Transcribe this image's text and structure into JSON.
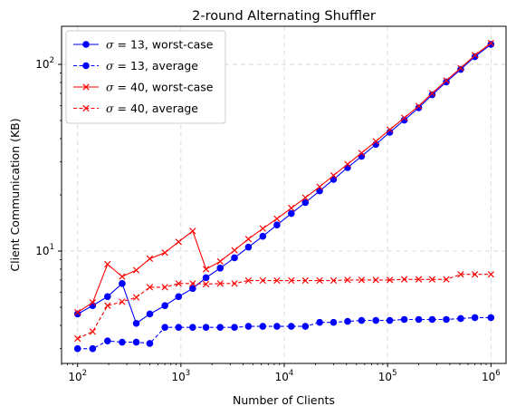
{
  "chart_data": {
    "type": "line",
    "title": "2-round Alternating Shuffler",
    "xlabel": "Number of Clients",
    "ylabel": "Client Communication (KB)",
    "xscale": "log",
    "yscale": "log",
    "xlim": [
      70,
      1400000
    ],
    "ylim": [
      2.5,
      160
    ],
    "grid": true,
    "legend_position": "upper-left",
    "x_ticks": [
      {
        "value": 100,
        "base": "10",
        "exp": "2"
      },
      {
        "value": 1000,
        "base": "10",
        "exp": "3"
      },
      {
        "value": 10000,
        "base": "10",
        "exp": "4"
      },
      {
        "value": 100000,
        "base": "10",
        "exp": "5"
      },
      {
        "value": 1000000,
        "base": "10",
        "exp": "6"
      }
    ],
    "y_ticks": [
      {
        "value": 10,
        "base": "10",
        "exp": "1"
      },
      {
        "value": 100,
        "base": "10",
        "exp": "2"
      }
    ],
    "x": [
      100,
      140,
      195,
      270,
      370,
      500,
      700,
      950,
      1300,
      1750,
      2400,
      3300,
      4500,
      6200,
      8500,
      11700,
      16000,
      22000,
      30000,
      41000,
      56000,
      77000,
      105000,
      145000,
      200000,
      270000,
      370000,
      510000,
      700000,
      1000000
    ],
    "series": [
      {
        "name_prefix": "σ = 13",
        "name_suffix": ", worst-case",
        "color": "#0000ff",
        "linestyle": "solid",
        "marker": "circle",
        "values": [
          4.6,
          5.1,
          5.7,
          6.7,
          4.1,
          4.6,
          5.1,
          5.7,
          6.3,
          7.2,
          8.1,
          9.2,
          10.5,
          12.0,
          13.8,
          15.9,
          18.2,
          21.0,
          24.2,
          28.0,
          32.2,
          37.3,
          43.3,
          50.3,
          58.5,
          68.7,
          80.5,
          94.0,
          110.0,
          128.0
        ]
      },
      {
        "name_prefix": "σ = 13",
        "name_suffix": ", average",
        "color": "#0000ff",
        "linestyle": "dashed",
        "marker": "circle",
        "values": [
          3.0,
          3.0,
          3.3,
          3.25,
          3.25,
          3.2,
          3.9,
          3.9,
          3.9,
          3.9,
          3.9,
          3.9,
          3.95,
          3.95,
          3.95,
          3.95,
          3.95,
          4.15,
          4.15,
          4.2,
          4.25,
          4.25,
          4.25,
          4.3,
          4.3,
          4.3,
          4.3,
          4.35,
          4.4,
          4.4
        ]
      },
      {
        "name_prefix": "σ = 40",
        "name_suffix": ", worst-case",
        "color": "#ff0000",
        "linestyle": "solid",
        "marker": "x",
        "values": [
          4.7,
          5.3,
          8.5,
          7.3,
          7.9,
          9.1,
          9.8,
          11.2,
          12.8,
          8.0,
          8.8,
          10.1,
          11.6,
          13.2,
          14.9,
          17.0,
          19.3,
          22.1,
          25.4,
          29.2,
          33.5,
          38.7,
          44.7,
          51.7,
          59.8,
          70.1,
          81.9,
          95.6,
          112.0,
          130.0
        ]
      },
      {
        "name_prefix": "σ = 40",
        "name_suffix": ", average",
        "color": "#ff0000",
        "linestyle": "dashed",
        "marker": "x",
        "values": [
          3.4,
          3.7,
          5.1,
          5.35,
          5.65,
          6.4,
          6.4,
          6.7,
          6.7,
          6.65,
          6.7,
          6.7,
          6.95,
          6.95,
          6.95,
          6.95,
          6.95,
          6.95,
          6.95,
          7.0,
          7.0,
          7.0,
          7.0,
          7.05,
          7.05,
          7.05,
          7.05,
          7.5,
          7.5,
          7.5
        ]
      }
    ]
  }
}
